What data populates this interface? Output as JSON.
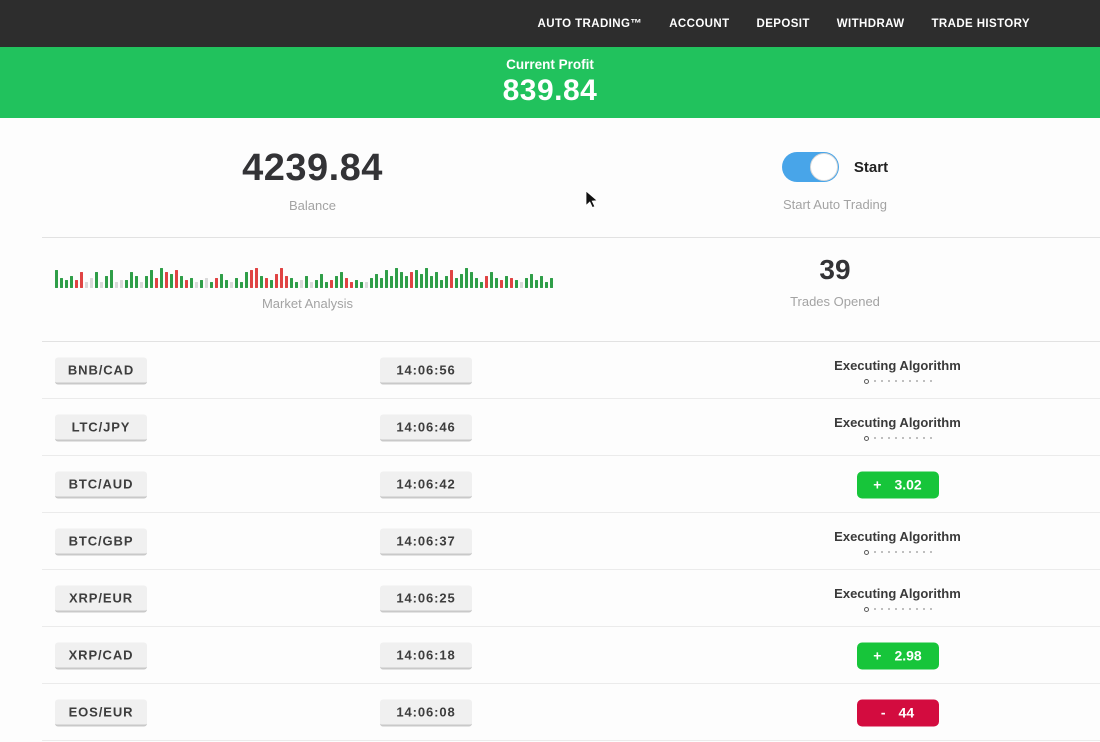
{
  "nav": {
    "items": [
      "AUTO TRADING™",
      "ACCOUNT",
      "DEPOSIT",
      "WITHDRAW",
      "TRADE HISTORY"
    ]
  },
  "profit_banner": {
    "label": "Current Profit",
    "value": "839.84"
  },
  "stats": {
    "balance": {
      "value": "4239.84",
      "label": "Balance"
    },
    "auto_trading": {
      "toggle_state": "on",
      "toggle_label": "Start",
      "label": "Start Auto Trading"
    },
    "market_analysis": {
      "label": "Market Analysis"
    },
    "trades_opened": {
      "value": "39",
      "label": "Trades Opened"
    }
  },
  "chart_data": {
    "type": "bar",
    "title": "Market Analysis",
    "note": "decorative mini bar strip; heights in px (max 30), colors g=green r=red l=lightgray",
    "bars": [
      [
        18,
        "g"
      ],
      [
        10,
        "g"
      ],
      [
        8,
        "g"
      ],
      [
        12,
        "g"
      ],
      [
        8,
        "r"
      ],
      [
        16,
        "r"
      ],
      [
        6,
        "l"
      ],
      [
        10,
        "l"
      ],
      [
        16,
        "g"
      ],
      [
        6,
        "l"
      ],
      [
        12,
        "g"
      ],
      [
        18,
        "g"
      ],
      [
        6,
        "l"
      ],
      [
        8,
        "l"
      ],
      [
        8,
        "g"
      ],
      [
        16,
        "g"
      ],
      [
        12,
        "g"
      ],
      [
        6,
        "l"
      ],
      [
        12,
        "g"
      ],
      [
        18,
        "g"
      ],
      [
        10,
        "r"
      ],
      [
        20,
        "g"
      ],
      [
        16,
        "r"
      ],
      [
        14,
        "g"
      ],
      [
        18,
        "r"
      ],
      [
        12,
        "g"
      ],
      [
        8,
        "r"
      ],
      [
        10,
        "g"
      ],
      [
        6,
        "l"
      ],
      [
        8,
        "g"
      ],
      [
        10,
        "l"
      ],
      [
        6,
        "g"
      ],
      [
        10,
        "r"
      ],
      [
        14,
        "g"
      ],
      [
        8,
        "g"
      ],
      [
        6,
        "l"
      ],
      [
        10,
        "g"
      ],
      [
        6,
        "g"
      ],
      [
        16,
        "g"
      ],
      [
        18,
        "r"
      ],
      [
        20,
        "r"
      ],
      [
        12,
        "g"
      ],
      [
        10,
        "r"
      ],
      [
        8,
        "g"
      ],
      [
        14,
        "r"
      ],
      [
        20,
        "r"
      ],
      [
        12,
        "r"
      ],
      [
        10,
        "g"
      ],
      [
        6,
        "g"
      ],
      [
        8,
        "l"
      ],
      [
        12,
        "g"
      ],
      [
        6,
        "l"
      ],
      [
        8,
        "g"
      ],
      [
        14,
        "g"
      ],
      [
        6,
        "g"
      ],
      [
        8,
        "r"
      ],
      [
        12,
        "g"
      ],
      [
        16,
        "g"
      ],
      [
        10,
        "r"
      ],
      [
        6,
        "r"
      ],
      [
        8,
        "g"
      ],
      [
        6,
        "g"
      ],
      [
        6,
        "l"
      ],
      [
        10,
        "g"
      ],
      [
        14,
        "g"
      ],
      [
        10,
        "g"
      ],
      [
        18,
        "g"
      ],
      [
        12,
        "g"
      ],
      [
        20,
        "g"
      ],
      [
        16,
        "g"
      ],
      [
        12,
        "g"
      ],
      [
        16,
        "r"
      ],
      [
        18,
        "g"
      ],
      [
        14,
        "g"
      ],
      [
        20,
        "g"
      ],
      [
        12,
        "g"
      ],
      [
        16,
        "g"
      ],
      [
        8,
        "g"
      ],
      [
        12,
        "g"
      ],
      [
        18,
        "r"
      ],
      [
        10,
        "g"
      ],
      [
        14,
        "g"
      ],
      [
        20,
        "g"
      ],
      [
        16,
        "g"
      ],
      [
        10,
        "g"
      ],
      [
        6,
        "g"
      ],
      [
        12,
        "r"
      ],
      [
        16,
        "g"
      ],
      [
        10,
        "g"
      ],
      [
        8,
        "r"
      ],
      [
        12,
        "g"
      ],
      [
        10,
        "r"
      ],
      [
        8,
        "g"
      ],
      [
        6,
        "l"
      ],
      [
        10,
        "g"
      ],
      [
        14,
        "g"
      ],
      [
        8,
        "g"
      ],
      [
        12,
        "g"
      ],
      [
        6,
        "g"
      ],
      [
        10,
        "g"
      ]
    ]
  },
  "rows": [
    {
      "pair": "BNB/CAD",
      "time": "14:06:56",
      "status": {
        "type": "executing",
        "label": "Executing Algorithm"
      }
    },
    {
      "pair": "LTC/JPY",
      "time": "14:06:46",
      "status": {
        "type": "executing",
        "label": "Executing Algorithm"
      }
    },
    {
      "pair": "BTC/AUD",
      "time": "14:06:42",
      "status": {
        "type": "profit",
        "sign": "+",
        "value": "3.02"
      }
    },
    {
      "pair": "BTC/GBP",
      "time": "14:06:37",
      "status": {
        "type": "executing",
        "label": "Executing Algorithm"
      }
    },
    {
      "pair": "XRP/EUR",
      "time": "14:06:25",
      "status": {
        "type": "executing",
        "label": "Executing Algorithm"
      }
    },
    {
      "pair": "XRP/CAD",
      "time": "14:06:18",
      "status": {
        "type": "profit",
        "sign": "+",
        "value": "2.98"
      }
    },
    {
      "pair": "EOS/EUR",
      "time": "14:06:08",
      "status": {
        "type": "loss",
        "sign": "-",
        "value": "44"
      }
    }
  ],
  "colors": {
    "nav_bg": "#2d2d2d",
    "banner_green": "#21c25d",
    "toggle_blue": "#48a5e9",
    "profit_badge_green": "#17c53a",
    "loss_badge_red": "#d30c3f",
    "chart_green": "#2f9e48",
    "chart_red": "#e04343",
    "chart_gray": "#d9d9d9"
  }
}
